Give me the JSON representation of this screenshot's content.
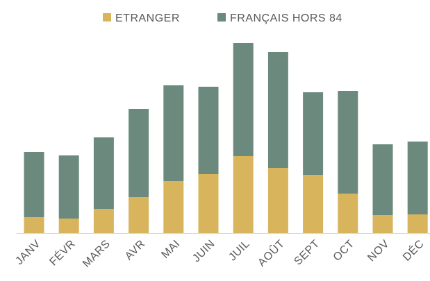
{
  "chart_data": {
    "type": "stacked-bar",
    "categories": [
      "JANV",
      "FÉVR",
      "MARS",
      "AVR",
      "MAI",
      "JUIN",
      "JUIL",
      "AOÛT",
      "SEPT",
      "OCT",
      "NOV",
      "DÉC"
    ],
    "series": [
      {
        "name": "ETRANGER",
        "color": "#d8b45c",
        "values": [
          23,
          21,
          35,
          52,
          75,
          85,
          111,
          94,
          84,
          57,
          26,
          27
        ]
      },
      {
        "name": "FRANÇAIS HORS 84",
        "color": "#6b8a7d",
        "values": [
          94,
          91,
          103,
          127,
          138,
          126,
          163,
          167,
          119,
          148,
          102,
          105
        ]
      }
    ],
    "ylim": [
      0,
      280
    ],
    "legend": "top"
  }
}
